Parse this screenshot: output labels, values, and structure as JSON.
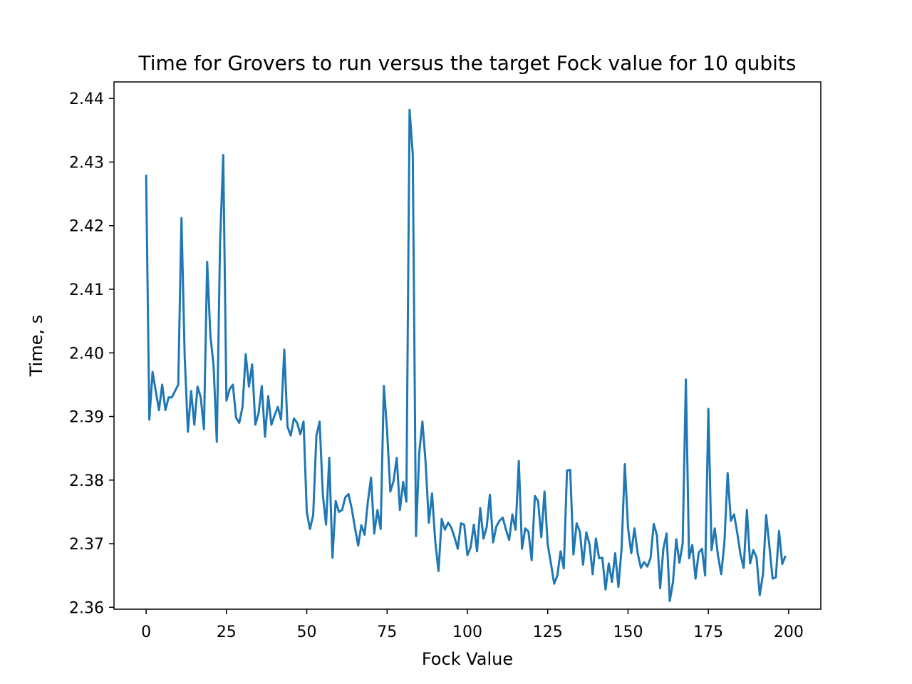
{
  "chart_data": {
    "type": "line",
    "title": "Time for Grovers to run versus the target Fock value for 10 qubits",
    "xlabel": "Fock Value",
    "ylabel": "Time, s",
    "xlim": [
      -10,
      210
    ],
    "ylim": [
      2.3597,
      2.4426
    ],
    "xticks": [
      0,
      25,
      50,
      75,
      100,
      125,
      150,
      175,
      200
    ],
    "xtick_labels": [
      "0",
      "25",
      "50",
      "75",
      "100",
      "125",
      "150",
      "175",
      "200"
    ],
    "yticks": [
      2.36,
      2.37,
      2.38,
      2.39,
      2.4,
      2.41,
      2.42,
      2.43,
      2.44
    ],
    "ytick_labels": [
      "2.36",
      "2.37",
      "2.38",
      "2.39",
      "2.40",
      "2.41",
      "2.42",
      "2.43",
      "2.44"
    ],
    "grid": false,
    "legend": "none",
    "line_color": "#1f77b4",
    "series": [
      {
        "x": [
          0,
          1,
          2,
          3,
          4,
          5,
          6,
          7,
          8,
          9,
          10,
          11,
          12,
          13,
          14,
          15,
          16,
          17,
          18,
          19,
          20,
          21,
          22,
          23,
          24,
          25,
          26,
          27,
          28,
          29,
          30,
          31,
          32,
          33,
          34,
          35,
          36,
          37,
          38,
          39,
          40,
          41,
          42,
          43,
          44,
          45,
          46,
          47,
          48,
          49,
          50,
          51,
          52,
          53,
          54,
          55,
          56,
          57,
          58,
          59,
          60,
          61,
          62,
          63,
          64,
          65,
          66,
          67,
          68,
          69,
          70,
          71,
          72,
          73,
          74,
          75,
          76,
          77,
          78,
          79,
          80,
          81,
          82,
          83,
          84,
          85,
          86,
          87,
          88,
          89,
          90,
          91,
          92,
          93,
          94,
          95,
          96,
          97,
          98,
          99,
          100,
          101,
          102,
          103,
          104,
          105,
          106,
          107,
          108,
          109,
          110,
          111,
          112,
          113,
          114,
          115,
          116,
          117,
          118,
          119,
          120,
          121,
          122,
          123,
          124,
          125,
          126,
          127,
          128,
          129,
          130,
          131,
          132,
          133,
          134,
          135,
          136,
          137,
          138,
          139,
          140,
          141,
          142,
          143,
          144,
          145,
          146,
          147,
          148,
          149,
          150,
          151,
          152,
          153,
          154,
          155,
          156,
          157,
          158,
          159,
          160,
          161,
          162,
          163,
          164,
          165,
          166,
          167,
          168,
          169,
          170,
          171,
          172,
          173,
          174,
          175,
          176,
          177,
          178,
          179,
          180,
          181,
          182,
          183,
          184,
          185,
          186,
          187,
          188,
          189,
          190,
          191,
          192,
          193,
          194,
          195,
          196,
          197,
          198,
          199
        ],
        "y": [
          2.428,
          2.3895,
          2.397,
          2.394,
          2.391,
          2.395,
          2.391,
          2.393,
          2.393,
          2.394,
          2.395,
          2.4212,
          2.3995,
          2.3876,
          2.394,
          2.3887,
          2.3947,
          2.393,
          2.388,
          2.4143,
          2.4027,
          2.398,
          2.386,
          2.417,
          2.4311,
          2.3925,
          2.3943,
          2.395,
          2.3898,
          2.389,
          2.3915,
          2.3998,
          2.3947,
          2.3982,
          2.3887,
          2.3905,
          2.3948,
          2.3868,
          2.3932,
          2.3887,
          2.3902,
          2.3915,
          2.3895,
          2.4005,
          2.3884,
          2.387,
          2.3897,
          2.389,
          2.3872,
          2.3892,
          2.375,
          2.3723,
          2.3745,
          2.387,
          2.3892,
          2.3777,
          2.373,
          2.3835,
          2.3678,
          2.3767,
          2.375,
          2.3753,
          2.3773,
          2.3778,
          2.3755,
          2.3725,
          2.3697,
          2.3729,
          2.3714,
          2.3765,
          2.3804,
          2.3716,
          2.3753,
          2.3723,
          2.3948,
          2.3878,
          2.3782,
          2.3798,
          2.3835,
          2.3753,
          2.3797,
          2.3766,
          2.4382,
          2.4312,
          2.3712,
          2.3842,
          2.3892,
          2.3827,
          2.3733,
          2.3779,
          2.3703,
          2.3657,
          2.3739,
          2.3722,
          2.3733,
          2.3725,
          2.371,
          2.3692,
          2.3732,
          2.373,
          2.3682,
          2.3694,
          2.373,
          2.3688,
          2.3756,
          2.3708,
          2.3726,
          2.3777,
          2.3702,
          2.3727,
          2.3736,
          2.3741,
          2.3722,
          2.3706,
          2.3746,
          2.3722,
          2.383,
          2.3692,
          2.3724,
          2.3719,
          2.3674,
          2.3775,
          2.3767,
          2.371,
          2.3782,
          2.3699,
          2.3669,
          2.3637,
          2.365,
          2.3688,
          2.3661,
          2.3815,
          2.3816,
          2.3683,
          2.3732,
          2.3719,
          2.3667,
          2.3718,
          2.3699,
          2.3652,
          2.3708,
          2.3677,
          2.3678,
          2.3628,
          2.3669,
          2.364,
          2.3685,
          2.3632,
          2.3693,
          2.3825,
          2.3725,
          2.3685,
          2.3724,
          2.3685,
          2.3662,
          2.3671,
          2.3664,
          2.3677,
          2.3731,
          2.3713,
          2.363,
          2.3692,
          2.3716,
          2.361,
          2.364,
          2.3707,
          2.367,
          2.37,
          2.3958,
          2.3677,
          2.3698,
          2.3645,
          2.3686,
          2.3692,
          2.365,
          2.3912,
          2.369,
          2.3724,
          2.3681,
          2.3652,
          2.3702,
          2.3811,
          2.3736,
          2.3746,
          2.3717,
          2.3683,
          2.3662,
          2.3753,
          2.3669,
          2.369,
          2.3678,
          2.3619,
          2.3652,
          2.3745,
          2.3696,
          2.3645,
          2.3647,
          2.372,
          2.3668,
          2.3681
        ]
      }
    ]
  }
}
